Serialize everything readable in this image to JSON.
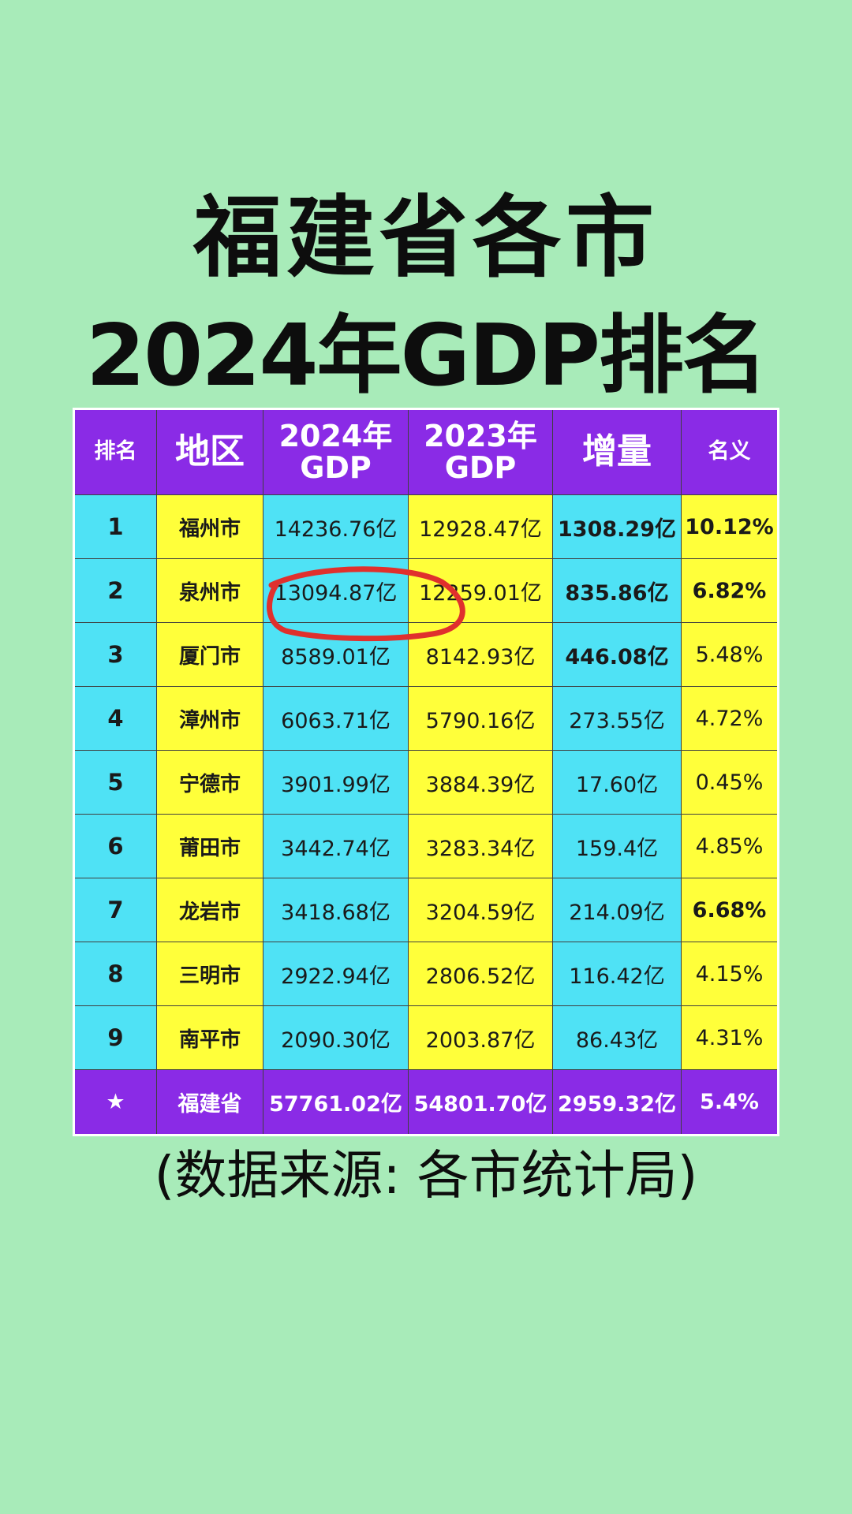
{
  "title": {
    "line1": "福建省各市",
    "line2": "2024年GDP排名"
  },
  "colors": {
    "background": "#a8ebb9",
    "header": "#8a2be6",
    "cyan_cell": "#4fe2f5",
    "yellow_cell": "#ffff3a",
    "annotation": "#e0302d"
  },
  "table": {
    "headers": {
      "rank": "排名",
      "region": "地区",
      "gdp2024_line1": "2024年",
      "gdp2024_line2": "GDP",
      "gdp2023_line1": "2023年",
      "gdp2023_line2": "GDP",
      "increase": "增量",
      "growth": "名义"
    },
    "rows": [
      {
        "rank": "1",
        "city": "福州市",
        "gdp2024": "14236.76亿",
        "gdp2023": "12928.47亿",
        "increase": "1308.29亿",
        "growth": "10.12%",
        "increase_bold": true,
        "growth_bold": true
      },
      {
        "rank": "2",
        "city": "泉州市",
        "gdp2024": "13094.87亿",
        "gdp2023": "12259.01亿",
        "increase": "835.86亿",
        "growth": "6.82%",
        "increase_bold": true,
        "growth_bold": true
      },
      {
        "rank": "3",
        "city": "厦门市",
        "gdp2024": "8589.01亿",
        "gdp2023": "8142.93亿",
        "increase": "446.08亿",
        "growth": "5.48%",
        "increase_bold": true,
        "growth_bold": false
      },
      {
        "rank": "4",
        "city": "漳州市",
        "gdp2024": "6063.71亿",
        "gdp2023": "5790.16亿",
        "increase": "273.55亿",
        "growth": "4.72%",
        "increase_bold": false,
        "growth_bold": false
      },
      {
        "rank": "5",
        "city": "宁德市",
        "gdp2024": "3901.99亿",
        "gdp2023": "3884.39亿",
        "increase": "17.60亿",
        "growth": "0.45%",
        "increase_bold": false,
        "growth_bold": false
      },
      {
        "rank": "6",
        "city": "莆田市",
        "gdp2024": "3442.74亿",
        "gdp2023": "3283.34亿",
        "increase": "159.4亿",
        "growth": "4.85%",
        "increase_bold": false,
        "growth_bold": false
      },
      {
        "rank": "7",
        "city": "龙岩市",
        "gdp2024": "3418.68亿",
        "gdp2023": "3204.59亿",
        "increase": "214.09亿",
        "growth": "6.68%",
        "increase_bold": false,
        "growth_bold": true
      },
      {
        "rank": "8",
        "city": "三明市",
        "gdp2024": "2922.94亿",
        "gdp2023": "2806.52亿",
        "increase": "116.42亿",
        "growth": "4.15%",
        "increase_bold": false,
        "growth_bold": false
      },
      {
        "rank": "9",
        "city": "南平市",
        "gdp2024": "2090.30亿",
        "gdp2023": "2003.87亿",
        "increase": "86.43亿",
        "growth": "4.31%",
        "increase_bold": false,
        "growth_bold": false
      }
    ],
    "total": {
      "rank_icon": "star-icon",
      "star": "★",
      "region": "福建省",
      "gdp2024": "57761.02亿",
      "gdp2023": "54801.70亿",
      "increase": "2959.32亿",
      "growth": "5.4%"
    }
  },
  "source_note": "(数据来源: 各市统计局)",
  "chart_data": {
    "type": "table",
    "title": "福建省各市2024年GDP排名",
    "columns": [
      "排名",
      "地区",
      "2024年GDP",
      "2023年GDP",
      "增量",
      "名义"
    ],
    "unit": "亿",
    "rows": [
      {
        "rank": 1,
        "region": "福州市",
        "gdp_2024": 14236.76,
        "gdp_2023": 12928.47,
        "increase": 1308.29,
        "growth_pct": 10.12
      },
      {
        "rank": 2,
        "region": "泉州市",
        "gdp_2024": 13094.87,
        "gdp_2023": 12259.01,
        "increase": 835.86,
        "growth_pct": 6.82
      },
      {
        "rank": 3,
        "region": "厦门市",
        "gdp_2024": 8589.01,
        "gdp_2023": 8142.93,
        "increase": 446.08,
        "growth_pct": 5.48
      },
      {
        "rank": 4,
        "region": "漳州市",
        "gdp_2024": 6063.71,
        "gdp_2023": 5790.16,
        "increase": 273.55,
        "growth_pct": 4.72
      },
      {
        "rank": 5,
        "region": "宁德市",
        "gdp_2024": 3901.99,
        "gdp_2023": 3884.39,
        "increase": 17.6,
        "growth_pct": 0.45
      },
      {
        "rank": 6,
        "region": "莆田市",
        "gdp_2024": 3442.74,
        "gdp_2023": 3283.34,
        "increase": 159.4,
        "growth_pct": 4.85
      },
      {
        "rank": 7,
        "region": "龙岩市",
        "gdp_2024": 3418.68,
        "gdp_2023": 3204.59,
        "increase": 214.09,
        "growth_pct": 6.68
      },
      {
        "rank": 8,
        "region": "三明市",
        "gdp_2024": 2922.94,
        "gdp_2023": 2806.52,
        "increase": 116.42,
        "growth_pct": 4.15
      },
      {
        "rank": 9,
        "region": "南平市",
        "gdp_2024": 2090.3,
        "gdp_2023": 2003.87,
        "increase": 86.43,
        "growth_pct": 4.31
      }
    ],
    "total": {
      "region": "福建省",
      "gdp_2024": 57761.02,
      "gdp_2023": 54801.7,
      "increase": 2959.32,
      "growth_pct": 5.4
    }
  }
}
